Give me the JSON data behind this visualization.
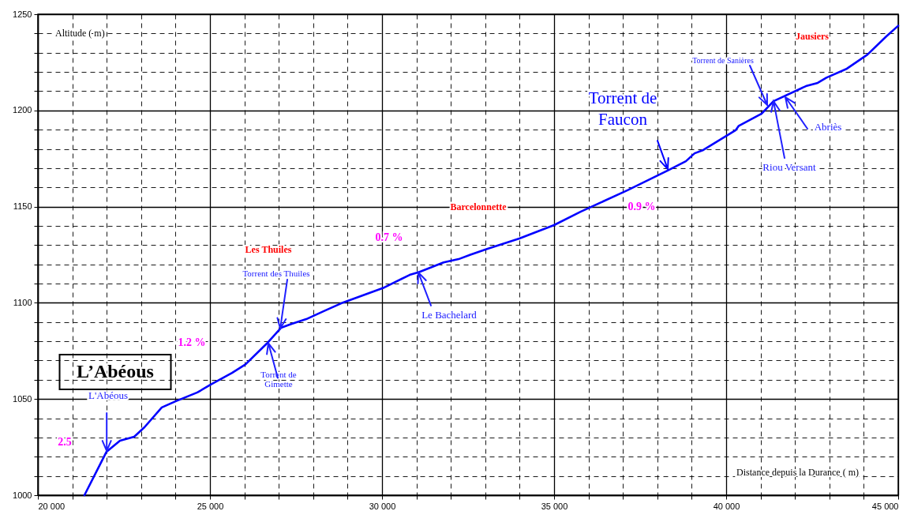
{
  "chart_data": {
    "type": "line",
    "xlabel": "Distance depuis la Durance ( m)",
    "ylabel": "Altitude ( m)",
    "x": [
      21353,
      21995,
      22385,
      22798,
      23096,
      23600,
      24014,
      24633,
      25023,
      25642,
      26032,
      26651,
      27064,
      27362,
      27798,
      28349,
      28876,
      30069,
      30803,
      31078,
      31789,
      32225,
      32569,
      33050,
      33990,
      35000,
      35780,
      37133,
      38326,
      38830,
      39083,
      39335,
      40275,
      40367,
      41032,
      41376,
      42317,
      42661,
      42913,
      43509,
      44106,
      44656,
      45000
    ],
    "series": [
      {
        "color": "#0000ff",
        "values": [
          1000,
          1022.6,
          1028.3,
          1030.4,
          1035.3,
          1045.6,
          1048.9,
          1053.4,
          1057.5,
          1063.6,
          1068,
          1078.8,
          1087,
          1089,
          1091.5,
          1096,
          1100.2,
          1108,
          1114.5,
          1116,
          1121,
          1122.7,
          1125,
          1128,
          1133.4,
          1140.4,
          1147.4,
          1158.5,
          1169,
          1173.6,
          1177.7,
          1179.4,
          1189.7,
          1192,
          1198.3,
          1204.8,
          1212.6,
          1214.3,
          1217,
          1221.7,
          1229,
          1238.5,
          1244
        ]
      }
    ],
    "xlim": [
      20000,
      45000
    ],
    "ylim": [
      1000,
      1250
    ],
    "xticks": [
      {
        "value": 20000,
        "label": "20 000"
      },
      {
        "value": 21000,
        "label": null
      },
      {
        "value": 22000,
        "label": null
      },
      {
        "value": 23000,
        "label": null
      },
      {
        "value": 24000,
        "label": null
      },
      {
        "value": 25000,
        "label": "25 000"
      },
      {
        "value": 26000,
        "label": null
      },
      {
        "value": 27000,
        "label": null
      },
      {
        "value": 28000,
        "label": null
      },
      {
        "value": 29000,
        "label": null
      },
      {
        "value": 30000,
        "label": "30 000"
      },
      {
        "value": 31000,
        "label": null
      },
      {
        "value": 32000,
        "label": null
      },
      {
        "value": 33000,
        "label": null
      },
      {
        "value": 34000,
        "label": null
      },
      {
        "value": 35000,
        "label": "35 000"
      },
      {
        "value": 36000,
        "label": null
      },
      {
        "value": 37000,
        "label": null
      },
      {
        "value": 38000,
        "label": null
      },
      {
        "value": 39000,
        "label": null
      },
      {
        "value": 40000,
        "label": "40 000"
      },
      {
        "value": 41000,
        "label": null
      },
      {
        "value": 42000,
        "label": null
      },
      {
        "value": 43000,
        "label": null
      },
      {
        "value": 44000,
        "label": null
      },
      {
        "value": 45000,
        "label": "45 000"
      }
    ],
    "yticks": [
      1000,
      {
        "value": 1010,
        "label": null
      },
      {
        "value": 1020,
        "label": null
      },
      {
        "value": 1030,
        "label": null
      },
      {
        "value": 1040,
        "label": null
      },
      1050,
      {
        "value": 1060,
        "label": null
      },
      {
        "value": 1070,
        "label": null
      },
      {
        "value": 1080,
        "label": null
      },
      {
        "value": 1090,
        "label": null
      },
      1100,
      {
        "value": 1110,
        "label": null
      },
      {
        "value": 1120,
        "label": null
      },
      {
        "value": 1130,
        "label": null
      },
      {
        "value": 1140,
        "label": null
      },
      1150,
      {
        "value": 1160,
        "label": null
      },
      {
        "value": 1170,
        "label": null
      },
      {
        "value": 1180,
        "label": null
      },
      {
        "value": 1190,
        "label": null
      },
      1200,
      {
        "value": 1210,
        "label": null
      },
      {
        "value": 1220,
        "label": null
      },
      {
        "value": 1230,
        "label": null
      },
      {
        "value": 1240,
        "label": null
      },
      1250
    ],
    "grid": true,
    "marker": "none",
    "line_style": "solid",
    "annotations": [
      "L’Abéous",
      {
        "text": "L'Abéous",
        "x": 22000,
        "y": 1023
      },
      "2.5",
      "1.2 %",
      {
        "text": "Torrent de\nGimette",
        "x": 26697,
        "y": 1079
      },
      {
        "text": "Torrent des Thuiles",
        "x": 27041,
        "y": 1086.6
      },
      "Les Thuiles",
      "0.7 %",
      {
        "text": "Le Bachelard",
        "x": 31055,
        "y": 1115.8
      },
      "Barcelonnette",
      "0.9 %",
      {
        "text": "Torrent de\nFaucon",
        "x": 38303,
        "y": 1169.5
      },
      {
        "text": "Torrent de Sanières",
        "x": 41193,
        "y": 1202.8
      },
      {
        "text": "Riou Versant",
        "x": 41376,
        "y": 1204.8
      },
      {
        "text": "Abriès",
        "x": 41720,
        "y": 1206.9
      },
      "Jausiers"
    ]
  }
}
